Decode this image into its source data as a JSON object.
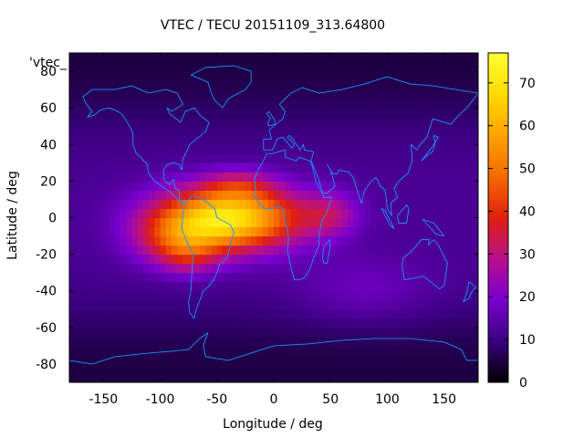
{
  "chart_data": {
    "type": "heatmap",
    "title": "VTEC / TECU 20151109_313.64800",
    "xlabel": "Longitude / deg",
    "ylabel": "Latitude / deg",
    "xlim": [
      -180,
      180
    ],
    "ylim": [
      -90,
      90
    ],
    "xticks": [
      -150,
      -100,
      -50,
      0,
      50,
      100,
      150
    ],
    "yticks": [
      -80,
      -60,
      -40,
      -20,
      0,
      20,
      40,
      60,
      80
    ],
    "xtick_labels": [
      "-150",
      "-100",
      "-50",
      "0",
      "50",
      "100",
      "150"
    ],
    "ytick_labels": [
      "-80",
      "-60",
      "-40",
      "-20",
      "0",
      "20",
      "40",
      "60",
      "80"
    ],
    "series_label": "'vtec_",
    "grid": false,
    "colorbar": {
      "range": [
        0,
        77
      ],
      "ticks": [
        0,
        10,
        20,
        30,
        40,
        50,
        60,
        70
      ],
      "tick_labels": [
        "0",
        "10",
        "20",
        "30",
        "40",
        "50",
        "60",
        "70"
      ],
      "colormap": [
        "#000000",
        "#3a007f",
        "#7a00d0",
        "#b8108c",
        "#e0200f",
        "#f56a00",
        "#fca300",
        "#ffdb00",
        "#ffff33"
      ]
    },
    "field": {
      "background_vtec": 12,
      "polar_vtec": 5,
      "peaks": [
        {
          "lon": -40,
          "lat": 0,
          "amp": 58,
          "sx": 62,
          "sy": 17
        },
        {
          "lon": -85,
          "lat": -12,
          "amp": 20,
          "sx": 38,
          "sy": 14
        },
        {
          "lon": -30,
          "lat": 18,
          "amp": 12,
          "sx": 30,
          "sy": 8
        },
        {
          "lon": -75,
          "lat": -22,
          "amp": 10,
          "sx": 25,
          "sy": 10
        },
        {
          "lon": 50,
          "lat": 2,
          "amp": 14,
          "sx": 25,
          "sy": 12
        },
        {
          "lon": 80,
          "lat": -40,
          "amp": 6,
          "sx": 60,
          "sy": 18
        }
      ]
    },
    "coastlines": [
      {
        "name": "north-america",
        "points": [
          [
            -168,
            66
          ],
          [
            -160,
            70
          ],
          [
            -140,
            70
          ],
          [
            -125,
            72
          ],
          [
            -110,
            68
          ],
          [
            -95,
            70
          ],
          [
            -85,
            68
          ],
          [
            -80,
            62
          ],
          [
            -90,
            58
          ],
          [
            -94,
            60
          ],
          [
            -92,
            57
          ],
          [
            -82,
            52
          ],
          [
            -78,
            58
          ],
          [
            -70,
            60
          ],
          [
            -65,
            56
          ],
          [
            -57,
            52
          ],
          [
            -60,
            47
          ],
          [
            -66,
            44
          ],
          [
            -70,
            42
          ],
          [
            -74,
            40
          ],
          [
            -76,
            37
          ],
          [
            -80,
            32
          ],
          [
            -81,
            26
          ],
          [
            -83,
            29
          ],
          [
            -88,
            30
          ],
          [
            -94,
            29
          ],
          [
            -97,
            26
          ],
          [
            -97,
            21
          ],
          [
            -92,
            18
          ],
          [
            -88,
            21
          ],
          [
            -87,
            16
          ],
          [
            -83,
            15
          ],
          [
            -83,
            10
          ],
          [
            -79,
            8
          ],
          [
            -82,
            8
          ],
          [
            -86,
            11
          ],
          [
            -91,
            14
          ],
          [
            -96,
            16
          ],
          [
            -105,
            20
          ],
          [
            -110,
            24
          ],
          [
            -112,
            30
          ],
          [
            -115,
            31
          ],
          [
            -117,
            33
          ],
          [
            -121,
            35
          ],
          [
            -124,
            40
          ],
          [
            -124,
            46
          ],
          [
            -127,
            50
          ],
          [
            -133,
            56
          ],
          [
            -137,
            58
          ],
          [
            -145,
            60
          ],
          [
            -152,
            59
          ],
          [
            -158,
            56
          ],
          [
            -164,
            55
          ],
          [
            -160,
            58
          ],
          [
            -165,
            62
          ],
          [
            -168,
            66
          ]
        ]
      },
      {
        "name": "south-america",
        "points": [
          [
            -78,
            8
          ],
          [
            -72,
            12
          ],
          [
            -62,
            10
          ],
          [
            -52,
            5
          ],
          [
            -50,
            0
          ],
          [
            -44,
            -2
          ],
          [
            -38,
            -4
          ],
          [
            -35,
            -8
          ],
          [
            -37,
            -12
          ],
          [
            -39,
            -17
          ],
          [
            -41,
            -22
          ],
          [
            -48,
            -26
          ],
          [
            -50,
            -30
          ],
          [
            -53,
            -34
          ],
          [
            -58,
            -38
          ],
          [
            -62,
            -40
          ],
          [
            -65,
            -45
          ],
          [
            -67,
            -48
          ],
          [
            -69,
            -52
          ],
          [
            -70,
            -55
          ],
          [
            -74,
            -52
          ],
          [
            -75,
            -46
          ],
          [
            -73,
            -40
          ],
          [
            -72,
            -30
          ],
          [
            -71,
            -20
          ],
          [
            -76,
            -14
          ],
          [
            -81,
            -6
          ],
          [
            -80,
            0
          ],
          [
            -78,
            8
          ]
        ]
      },
      {
        "name": "greenland",
        "points": [
          [
            -73,
            78
          ],
          [
            -60,
            82
          ],
          [
            -35,
            83
          ],
          [
            -20,
            80
          ],
          [
            -20,
            74
          ],
          [
            -25,
            70
          ],
          [
            -40,
            65
          ],
          [
            -45,
            60
          ],
          [
            -52,
            64
          ],
          [
            -55,
            68
          ],
          [
            -58,
            74
          ],
          [
            -73,
            78
          ]
        ]
      },
      {
        "name": "africa",
        "points": [
          [
            -17,
            21
          ],
          [
            -16,
            15
          ],
          [
            -17,
            12
          ],
          [
            -13,
            8
          ],
          [
            -8,
            5
          ],
          [
            -2,
            5
          ],
          [
            5,
            6
          ],
          [
            9,
            4
          ],
          [
            9,
            0
          ],
          [
            12,
            -6
          ],
          [
            13,
            -12
          ],
          [
            12,
            -18
          ],
          [
            15,
            -27
          ],
          [
            18,
            -34
          ],
          [
            22,
            -34
          ],
          [
            27,
            -33
          ],
          [
            32,
            -28
          ],
          [
            35,
            -22
          ],
          [
            40,
            -15
          ],
          [
            40,
            -10
          ],
          [
            42,
            -2
          ],
          [
            46,
            2
          ],
          [
            51,
            11
          ],
          [
            44,
            11
          ],
          [
            43,
            13
          ],
          [
            37,
            20
          ],
          [
            34,
            28
          ],
          [
            32,
            31
          ],
          [
            22,
            33
          ],
          [
            20,
            31
          ],
          [
            10,
            33
          ],
          [
            10,
            37
          ],
          [
            -1,
            35
          ],
          [
            -6,
            35
          ],
          [
            -10,
            30
          ],
          [
            -13,
            27
          ],
          [
            -17,
            21
          ]
        ]
      },
      {
        "name": "eurasia",
        "points": [
          [
            -9,
            37
          ],
          [
            -9,
            43
          ],
          [
            -2,
            43
          ],
          [
            -4,
            48
          ],
          [
            2,
            51
          ],
          [
            8,
            54
          ],
          [
            10,
            58
          ],
          [
            5,
            62
          ],
          [
            15,
            68
          ],
          [
            25,
            71
          ],
          [
            40,
            68
          ],
          [
            60,
            70
          ],
          [
            80,
            73
          ],
          [
            100,
            77
          ],
          [
            120,
            73
          ],
          [
            140,
            72
          ],
          [
            160,
            70
          ],
          [
            180,
            68
          ],
          [
            170,
            60
          ],
          [
            163,
            56
          ],
          [
            156,
            51
          ],
          [
            140,
            54
          ],
          [
            135,
            44
          ],
          [
            129,
            40
          ],
          [
            126,
            37
          ],
          [
            121,
            40
          ],
          [
            122,
            31
          ],
          [
            118,
            24
          ],
          [
            110,
            20
          ],
          [
            106,
            16
          ],
          [
            109,
            11
          ],
          [
            103,
            8
          ],
          [
            104,
            1
          ],
          [
            100,
            5
          ],
          [
            98,
            15
          ],
          [
            94,
            17
          ],
          [
            90,
            22
          ],
          [
            86,
            20
          ],
          [
            80,
            15
          ],
          [
            77,
            8
          ],
          [
            73,
            16
          ],
          [
            70,
            22
          ],
          [
            66,
            25
          ],
          [
            57,
            26
          ],
          [
            56,
            24
          ],
          [
            52,
            24
          ],
          [
            47,
            29
          ],
          [
            50,
            26
          ],
          [
            54,
            17
          ],
          [
            46,
            13
          ],
          [
            43,
            14
          ],
          [
            40,
            20
          ],
          [
            35,
            28
          ],
          [
            33,
            31
          ],
          [
            35,
            36
          ],
          [
            27,
            37
          ],
          [
            26,
            40
          ],
          [
            23,
            37
          ],
          [
            20,
            40
          ],
          [
            14,
            45
          ],
          [
            12,
            44
          ],
          [
            18,
            40
          ],
          [
            16,
            38
          ],
          [
            12,
            41
          ],
          [
            8,
            44
          ],
          [
            3,
            43
          ],
          [
            -1,
            37
          ],
          [
            -9,
            37
          ]
        ]
      },
      {
        "name": "uk",
        "points": [
          [
            -5,
            50
          ],
          [
            1,
            51
          ],
          [
            1,
            53
          ],
          [
            -2,
            56
          ],
          [
            -4,
            58
          ],
          [
            -6,
            57
          ],
          [
            -3,
            54
          ],
          [
            -5,
            52
          ],
          [
            -5,
            50
          ]
        ]
      },
      {
        "name": "japan",
        "points": [
          [
            130,
            31
          ],
          [
            135,
            34
          ],
          [
            140,
            36
          ],
          [
            142,
            40
          ],
          [
            141,
            45
          ],
          [
            145,
            44
          ],
          [
            140,
            39
          ],
          [
            135,
            35
          ],
          [
            130,
            31
          ]
        ]
      },
      {
        "name": "madagascar",
        "points": [
          [
            44,
            -25
          ],
          [
            47,
            -25
          ],
          [
            50,
            -15
          ],
          [
            49,
            -12
          ],
          [
            44,
            -16
          ],
          [
            43,
            -22
          ],
          [
            44,
            -25
          ]
        ]
      },
      {
        "name": "borneo",
        "points": [
          [
            109,
            1
          ],
          [
            117,
            7
          ],
          [
            119,
            5
          ],
          [
            117,
            -3
          ],
          [
            110,
            -3
          ],
          [
            109,
            1
          ]
        ]
      },
      {
        "name": "sumatra",
        "points": [
          [
            95,
            5
          ],
          [
            98,
            4
          ],
          [
            106,
            -6
          ],
          [
            102,
            -4
          ],
          [
            95,
            5
          ]
        ]
      },
      {
        "name": "new-guinea",
        "points": [
          [
            131,
            -1
          ],
          [
            141,
            -3
          ],
          [
            150,
            -10
          ],
          [
            143,
            -9
          ],
          [
            137,
            -5
          ],
          [
            131,
            -1
          ]
        ]
      },
      {
        "name": "australia",
        "points": [
          [
            114,
            -22
          ],
          [
            122,
            -18
          ],
          [
            130,
            -12
          ],
          [
            137,
            -12
          ],
          [
            136,
            -15
          ],
          [
            141,
            -12
          ],
          [
            145,
            -15
          ],
          [
            153,
            -25
          ],
          [
            150,
            -37
          ],
          [
            146,
            -39
          ],
          [
            138,
            -35
          ],
          [
            132,
            -32
          ],
          [
            124,
            -33
          ],
          [
            115,
            -34
          ],
          [
            113,
            -26
          ],
          [
            114,
            -22
          ]
        ]
      },
      {
        "name": "new-zealand",
        "points": [
          [
            172,
            -35
          ],
          [
            178,
            -38
          ],
          [
            174,
            -41
          ],
          [
            172,
            -44
          ],
          [
            167,
            -46
          ],
          [
            170,
            -41
          ],
          [
            172,
            -35
          ]
        ]
      },
      {
        "name": "antarctica",
        "points": [
          [
            -180,
            -78
          ],
          [
            -160,
            -80
          ],
          [
            -140,
            -76
          ],
          [
            -110,
            -74
          ],
          [
            -90,
            -73
          ],
          [
            -75,
            -72
          ],
          [
            -65,
            -66
          ],
          [
            -58,
            -63
          ],
          [
            -62,
            -70
          ],
          [
            -60,
            -76
          ],
          [
            -40,
            -78
          ],
          [
            -20,
            -74
          ],
          [
            0,
            -70
          ],
          [
            30,
            -69
          ],
          [
            60,
            -67
          ],
          [
            90,
            -66
          ],
          [
            120,
            -66
          ],
          [
            150,
            -68
          ],
          [
            165,
            -72
          ],
          [
            170,
            -78
          ],
          [
            180,
            -78
          ]
        ]
      }
    ]
  }
}
